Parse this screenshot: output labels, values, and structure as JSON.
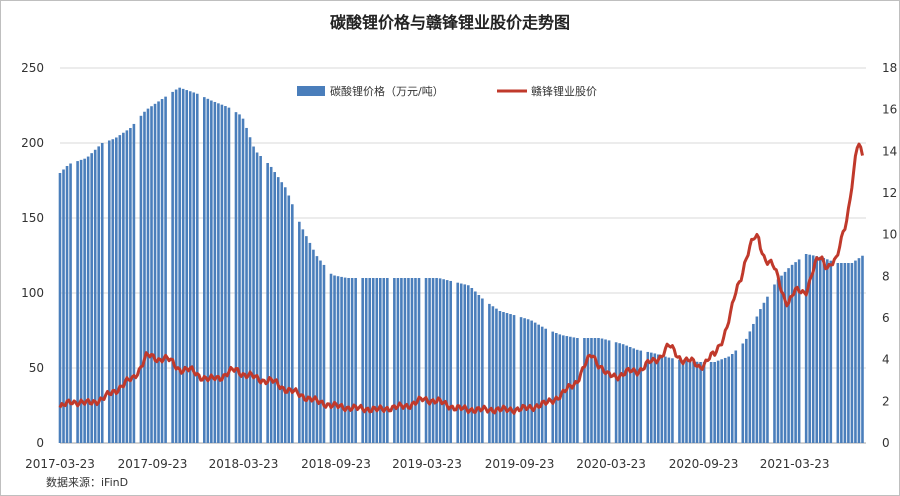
{
  "chart_data": {
    "type": "bar+line",
    "title": "碳酸锂价格与赣锋锂业股价走势图",
    "source": "数据来源：iFinD",
    "legend": [
      "碳酸锂价格（万元/吨）",
      "赣锋锂业股价"
    ],
    "x_ticks": [
      "2017-03-23",
      "2017-09-23",
      "2018-03-23",
      "2018-09-23",
      "2019-03-23",
      "2019-09-23",
      "2020-03-23",
      "2020-09-23",
      "2021-03-23"
    ],
    "y_left": {
      "min": 0,
      "max": 250,
      "ticks": [
        0,
        50,
        100,
        150,
        200,
        250
      ]
    },
    "y_right": {
      "min": 0,
      "max": 18,
      "ticks": [
        0,
        2,
        4,
        6,
        8,
        10,
        12,
        14,
        16,
        18
      ]
    },
    "colors": {
      "bar": "#4a7ebb",
      "line": "#c0392b",
      "grid": "#d9d9d9"
    },
    "lithium_carbonate_price_anchors": [
      [
        "2017-03-23",
        180
      ],
      [
        "2017-04-10",
        186
      ],
      [
        "2017-05-15",
        190
      ],
      [
        "2017-06-15",
        200
      ],
      [
        "2017-07-10",
        203
      ],
      [
        "2017-08-10",
        210
      ],
      [
        "2017-09-10",
        222
      ],
      [
        "2017-10-15",
        230
      ],
      [
        "2017-11-15",
        237
      ],
      [
        "2017-12-20",
        233
      ],
      [
        "2018-01-20",
        228
      ],
      [
        "2018-02-20",
        224
      ],
      [
        "2018-03-20",
        218
      ],
      [
        "2018-04-15",
        195
      ],
      [
        "2018-05-15",
        185
      ],
      [
        "2018-06-15",
        170
      ],
      [
        "2018-07-15",
        145
      ],
      [
        "2018-08-15",
        125
      ],
      [
        "2018-09-15",
        112
      ],
      [
        "2018-10-15",
        110
      ],
      [
        "2019-01-15",
        110
      ],
      [
        "2019-04-15",
        110
      ],
      [
        "2019-06-15",
        105
      ],
      [
        "2019-07-15",
        95
      ],
      [
        "2019-08-15",
        88
      ],
      [
        "2019-09-15",
        85
      ],
      [
        "2019-10-15",
        82
      ],
      [
        "2019-11-15",
        76
      ],
      [
        "2019-12-15",
        72
      ],
      [
        "2020-01-15",
        70
      ],
      [
        "2020-03-01",
        70
      ],
      [
        "2020-04-15",
        66
      ],
      [
        "2020-05-15",
        62
      ],
      [
        "2020-06-15",
        60
      ],
      [
        "2020-07-15",
        57
      ],
      [
        "2020-08-15",
        55
      ],
      [
        "2020-09-15",
        54
      ],
      [
        "2020-10-15",
        54
      ],
      [
        "2020-11-15",
        58
      ],
      [
        "2020-12-15",
        68
      ],
      [
        "2021-01-15",
        90
      ],
      [
        "2021-02-15",
        108
      ],
      [
        "2021-03-15",
        118
      ],
      [
        "2021-04-15",
        126
      ],
      [
        "2021-05-15",
        124
      ],
      [
        "2021-06-15",
        120
      ],
      [
        "2021-07-15",
        120
      ],
      [
        "2021-08-10",
        126
      ]
    ],
    "ganfeng_stock_price_anchors": [
      [
        "2017-03-23",
        1.7
      ],
      [
        "2017-04-15",
        2.0
      ],
      [
        "2017-05-15",
        1.9
      ],
      [
        "2017-06-15",
        2.1
      ],
      [
        "2017-07-15",
        2.6
      ],
      [
        "2017-08-15",
        3.1
      ],
      [
        "2017-09-10",
        4.1
      ],
      [
        "2017-10-15",
        4.1
      ],
      [
        "2017-11-15",
        3.6
      ],
      [
        "2017-12-15",
        3.4
      ],
      [
        "2018-01-15",
        3.0
      ],
      [
        "2018-02-15",
        3.3
      ],
      [
        "2018-03-10",
        3.5
      ],
      [
        "2018-04-15",
        3.1
      ],
      [
        "2018-05-15",
        3.0
      ],
      [
        "2018-06-15",
        2.6
      ],
      [
        "2018-07-15",
        2.3
      ],
      [
        "2018-08-15",
        2.0
      ],
      [
        "2018-09-15",
        1.8
      ],
      [
        "2018-10-15",
        1.7
      ],
      [
        "2018-12-15",
        1.6
      ],
      [
        "2019-02-15",
        1.8
      ],
      [
        "2019-03-15",
        2.1
      ],
      [
        "2019-04-15",
        2.0
      ],
      [
        "2019-05-15",
        1.7
      ],
      [
        "2019-06-15",
        1.6
      ],
      [
        "2019-07-15",
        1.6
      ],
      [
        "2019-08-15",
        1.6
      ],
      [
        "2019-09-15",
        1.6
      ],
      [
        "2019-10-15",
        1.7
      ],
      [
        "2019-11-15",
        1.9
      ],
      [
        "2019-12-15",
        2.3
      ],
      [
        "2020-01-15",
        3.0
      ],
      [
        "2020-02-15",
        4.3
      ],
      [
        "2020-03-15",
        3.2
      ],
      [
        "2020-04-15",
        3.3
      ],
      [
        "2020-05-15",
        3.5
      ],
      [
        "2020-06-15",
        3.9
      ],
      [
        "2020-07-15",
        4.6
      ],
      [
        "2020-08-15",
        4.0
      ],
      [
        "2020-09-15",
        3.7
      ],
      [
        "2020-10-15",
        4.2
      ],
      [
        "2020-11-15",
        6.0
      ],
      [
        "2020-12-15",
        9.0
      ],
      [
        "2021-01-10",
        9.8
      ],
      [
        "2021-02-10",
        8.2
      ],
      [
        "2021-03-10",
        6.8
      ],
      [
        "2021-04-15",
        7.5
      ],
      [
        "2021-05-15",
        8.9
      ],
      [
        "2021-06-15",
        8.5
      ],
      [
        "2021-07-15",
        12.5
      ],
      [
        "2021-07-28",
        14.0
      ],
      [
        "2021-08-05",
        13.6
      ]
    ]
  }
}
